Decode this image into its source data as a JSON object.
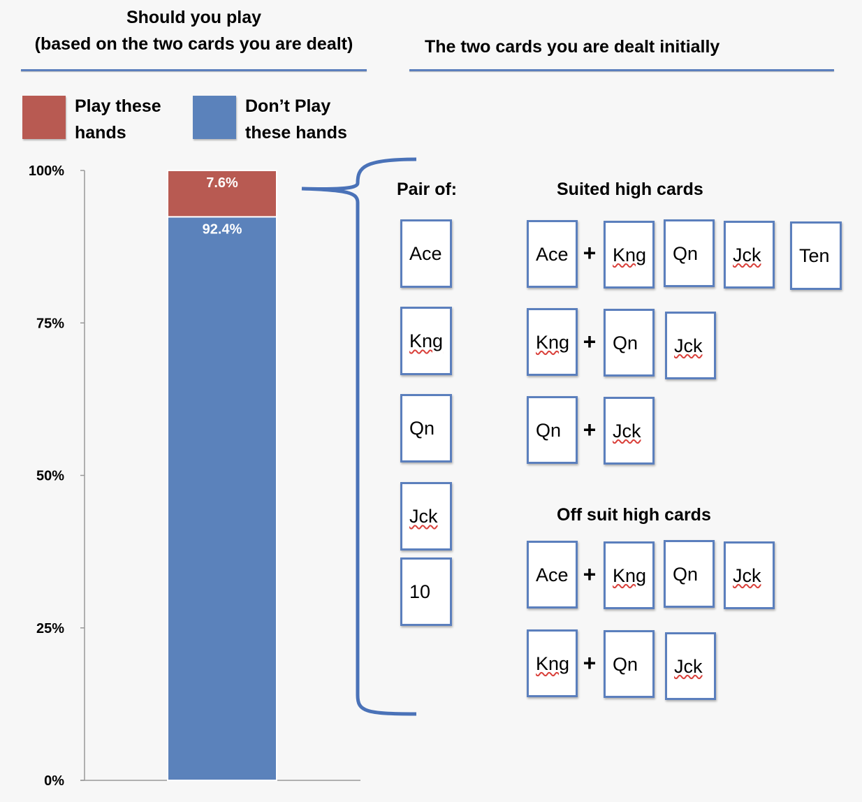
{
  "headings": {
    "left_line1": "Should you play",
    "left_line2": "(based on the two cards you are dealt)",
    "right": "The two cards you are dealt initially"
  },
  "legend": {
    "play_line1": "Play these",
    "play_line2": "hands",
    "dont_line1": "Don’t Play",
    "dont_line2": "these hands"
  },
  "colors": {
    "play": "#b85a52",
    "dont_play": "#5b82bb",
    "accent": "#5b7fbd"
  },
  "chart_data": {
    "type": "bar",
    "stacked": true,
    "categories": [
      ""
    ],
    "series": [
      {
        "name": "Play these hands",
        "values": [
          7.6
        ],
        "label": "7.6%"
      },
      {
        "name": "Don’t Play these hands",
        "values": [
          92.4
        ],
        "label": "92.4%"
      }
    ],
    "ylim": [
      0,
      100
    ],
    "yticks": [
      0,
      25,
      50,
      75,
      100
    ],
    "ytick_labels": [
      "0%",
      "25%",
      "50%",
      "75%",
      "100%"
    ]
  },
  "sections": {
    "pair": "Pair of:",
    "suited": "Suited high cards",
    "offsuit": "Off suit high cards"
  },
  "plus_sign": "+",
  "cards": {
    "pair": [
      "Ace",
      "Kng",
      "Qn",
      "Jck",
      "10"
    ],
    "suited_row1": [
      "Ace",
      "Kng",
      "Qn",
      "Jck",
      "Ten"
    ],
    "suited_row2": [
      "Kng",
      "Qn",
      "Jck"
    ],
    "suited_row3": [
      "Qn",
      "Jck"
    ],
    "offsuit_row1": [
      "Ace",
      "Kng",
      "Qn",
      "Jck"
    ],
    "offsuit_row2": [
      "Kng",
      "Qn",
      "Jck"
    ]
  }
}
